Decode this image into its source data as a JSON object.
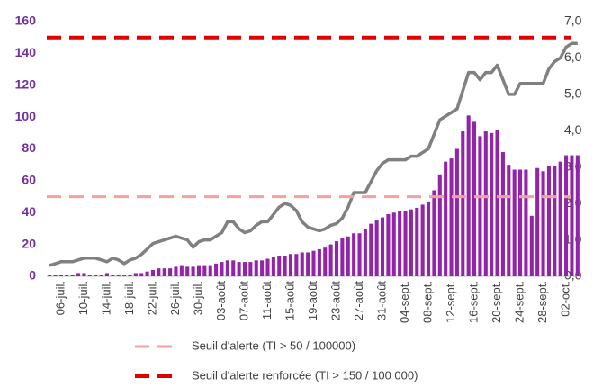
{
  "chart_data": {
    "type": "bar",
    "categories": [
      null,
      null,
      "06-juil.",
      null,
      null,
      null,
      "10-juil.",
      null,
      null,
      null,
      "14-juil.",
      null,
      null,
      null,
      "18-juil.",
      null,
      null,
      null,
      "22-juil.",
      null,
      null,
      null,
      "26-juil.",
      null,
      null,
      null,
      "30-juil.",
      null,
      null,
      null,
      "03-août",
      null,
      null,
      null,
      "07-août",
      null,
      null,
      null,
      "11-août",
      null,
      null,
      null,
      "15-août",
      null,
      null,
      null,
      "19-août",
      null,
      null,
      null,
      "23-août",
      null,
      null,
      null,
      "27-août",
      null,
      null,
      null,
      "31-août",
      null,
      null,
      null,
      "04-sept.",
      null,
      null,
      null,
      "08-sept.",
      null,
      null,
      null,
      "12-sept.",
      null,
      null,
      null,
      "16-sept.",
      null,
      null,
      null,
      "20-sept.",
      null,
      null,
      null,
      "24-sept.",
      null,
      null,
      null,
      "28-sept.",
      null,
      null,
      null,
      "02-oct.",
      null,
      null
    ],
    "series": [
      {
        "color": "#9323a8",
        "values": [
          1,
          1,
          1,
          1,
          1,
          2,
          2,
          1,
          1,
          1,
          2,
          1,
          1,
          1,
          1,
          2,
          2,
          3,
          4,
          5,
          5,
          5,
          6,
          7,
          6,
          6,
          7,
          7,
          7,
          8,
          9,
          10,
          10,
          9,
          9,
          9,
          10,
          10,
          11,
          12,
          13,
          13,
          14,
          14,
          15,
          15,
          16,
          17,
          18,
          20,
          22,
          24,
          25,
          27,
          27,
          30,
          33,
          35,
          37,
          39,
          40,
          41,
          41,
          42,
          43,
          45,
          47,
          54,
          64,
          72,
          74,
          80,
          91,
          101,
          97,
          88,
          91,
          90,
          92,
          78,
          70,
          67,
          67,
          67,
          38,
          68,
          66,
          69,
          69,
          72,
          76,
          76,
          76
        ]
      },
      {
        "type": "line",
        "axis": "y2",
        "color": "#808080",
        "values": [
          0.3,
          0.35,
          0.4,
          0.4,
          0.4,
          0.45,
          0.5,
          0.5,
          0.5,
          0.45,
          0.4,
          0.5,
          0.45,
          0.35,
          0.45,
          0.5,
          0.6,
          0.75,
          0.9,
          0.95,
          1.0,
          1.05,
          1.1,
          1.05,
          1.0,
          0.8,
          0.95,
          1.0,
          1.0,
          1.1,
          1.2,
          1.5,
          1.5,
          1.3,
          1.2,
          1.25,
          1.4,
          1.5,
          1.5,
          1.7,
          1.9,
          2.0,
          1.95,
          1.8,
          1.5,
          1.35,
          1.3,
          1.25,
          1.3,
          1.4,
          1.45,
          1.6,
          1.9,
          2.3,
          2.3,
          2.3,
          2.6,
          2.9,
          3.1,
          3.2,
          3.2,
          3.2,
          3.2,
          3.3,
          3.3,
          3.4,
          3.5,
          3.9,
          4.3,
          4.4,
          4.5,
          4.6,
          5.1,
          5.6,
          5.6,
          5.4,
          5.6,
          5.6,
          5.8,
          5.4,
          5.0,
          5.0,
          5.3,
          5.3,
          5.3,
          5.3,
          5.3,
          5.7,
          5.9,
          6.0,
          6.3,
          6.4,
          6.4
        ]
      }
    ],
    "reference_lines": [
      {
        "name": "Seuil d'alerte (TI > 50 / 100000)",
        "value": 50,
        "color": "#f4a0a0"
      },
      {
        "name": "Seuil d'alerte renforcée (TI > 150 / 100 000)",
        "value": 150,
        "color": "#e00000"
      }
    ],
    "ylim": [
      0,
      160
    ],
    "yticks": [
      0,
      20,
      40,
      60,
      80,
      100,
      120,
      140,
      160
    ],
    "y2lim": [
      0,
      7
    ],
    "y2ticks": [
      {
        "value": 0,
        "label": "0,0"
      },
      {
        "value": 1,
        "label": "1,0"
      },
      {
        "value": 2,
        "label": "2,0"
      },
      {
        "value": 3,
        "label": "3,0"
      },
      {
        "value": 4,
        "label": "4,0"
      },
      {
        "value": 5,
        "label": "5,0"
      },
      {
        "value": 6,
        "label": "6,0"
      },
      {
        "value": 7,
        "label": "7,0"
      }
    ],
    "legend": "bottom"
  }
}
